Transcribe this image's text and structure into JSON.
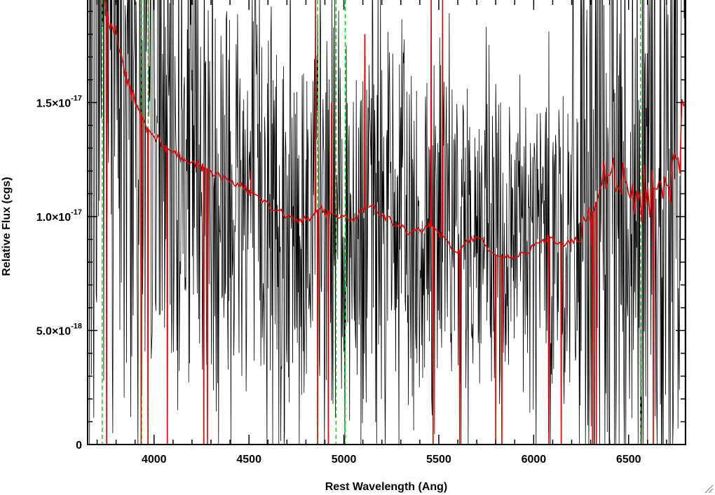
{
  "chart_data": {
    "type": "line",
    "title": "",
    "xlabel": "Rest Wavelength (Ang)",
    "ylabel": "Relative Flux (cgs)",
    "xlim": [
      3650,
      6800
    ],
    "ylim": [
      0,
      1.95e-17
    ],
    "x_ticks": [
      {
        "value": 4000,
        "label": "4000"
      },
      {
        "value": 4500,
        "label": "4500"
      },
      {
        "value": 5000,
        "label": "5000"
      },
      {
        "value": 5500,
        "label": "5500"
      },
      {
        "value": 6000,
        "label": "6000"
      },
      {
        "value": 6500,
        "label": "6500"
      }
    ],
    "y_ticks": [
      {
        "value": 0,
        "mantissa": "0",
        "exponent": ""
      },
      {
        "value": 5e-18,
        "mantissa": "5.0×10",
        "exponent": "-18"
      },
      {
        "value": 1e-17,
        "mantissa": "1.0×10",
        "exponent": "-17"
      },
      {
        "value": 1.5e-17,
        "mantissa": "1.5×10",
        "exponent": "-17"
      }
    ],
    "x_minor_step": 100,
    "y_minor_step": 1e-18,
    "grid": false,
    "series": [
      {
        "color": "#000000",
        "style": "noisy observed spectrum",
        "noise_seed": 7,
        "x_step": 2.5
      },
      {
        "color": "#e00000",
        "style": "model/template spectrum",
        "x": [
          3740,
          3760,
          3780,
          3800,
          3820,
          3840,
          3870,
          3900,
          3930,
          3960,
          4000,
          4050,
          4100,
          4150,
          4200,
          4250,
          4300,
          4350,
          4400,
          4450,
          4500,
          4550,
          4600,
          4650,
          4700,
          4750,
          4800,
          4850,
          4880,
          4900,
          4950,
          5000,
          5050,
          5100,
          5150,
          5200,
          5250,
          5300,
          5350,
          5400,
          5450,
          5500,
          5550,
          5600,
          5650,
          5700,
          5750,
          5800,
          5850,
          5900,
          5950,
          6000,
          6050,
          6100,
          6150,
          6200,
          6250,
          6300,
          6350,
          6400,
          6450,
          6500,
          6550,
          6600,
          6650,
          6700,
          6750,
          6800
        ],
        "y": [
          1.95e-17,
          1.85e-17,
          1.83e-17,
          1.8e-17,
          1.73e-17,
          1.65e-17,
          1.56e-17,
          1.5e-17,
          1.45e-17,
          1.39e-17,
          1.35e-17,
          1.31e-17,
          1.28e-17,
          1.26e-17,
          1.24e-17,
          1.22e-17,
          1.2e-17,
          1.17e-17,
          1.15e-17,
          1.13e-17,
          1.11e-17,
          1.09e-17,
          1.06e-17,
          1.03e-17,
          1e-17,
          9.9e-18,
          9.85e-18,
          1.02e-17,
          1.04e-17,
          1.02e-17,
          1.01e-17,
          1e-17,
          9.8e-18,
          1.03e-17,
          1.05e-17,
          1e-17,
          9.8e-18,
          9.5e-18,
          9.3e-18,
          9.4e-18,
          9.7e-18,
          9.3e-18,
          8.9e-18,
          8.4e-18,
          9e-18,
          9.1e-18,
          8.7e-18,
          8.3e-18,
          8.2e-18,
          8.2e-18,
          8.4e-18,
          8.7e-18,
          9e-18,
          9.1e-18,
          8.8e-18,
          9e-18,
          8.9e-18,
          9.8e-18,
          1.12e-17,
          1.18e-17,
          1.12e-17,
          1.1e-17,
          1.07e-17,
          1.13e-17,
          1.12e-17,
          1.14e-17,
          1.25e-17,
          1.5e-17
        ],
        "spikes": [
          {
            "x": 3750,
            "y": 0
          },
          {
            "x": 3932,
            "y": 0
          },
          {
            "x": 3968,
            "y": 0
          },
          {
            "x": 4070,
            "y": 0
          },
          {
            "x": 4262,
            "y": 0
          },
          {
            "x": 4281,
            "y": 0
          },
          {
            "x": 4510,
            "y": 1.2e-17
          },
          {
            "x": 4850,
            "y": 1.95e-17
          },
          {
            "x": 4862,
            "y": 0
          },
          {
            "x": 4918,
            "y": 0
          },
          {
            "x": 4935,
            "y": 1.5e-17
          },
          {
            "x": 5110,
            "y": 1.8e-17
          },
          {
            "x": 5460,
            "y": 1.95e-17
          },
          {
            "x": 5470,
            "y": 0
          },
          {
            "x": 5520,
            "y": 1.95e-17
          },
          {
            "x": 5610,
            "y": 0
          },
          {
            "x": 5800,
            "y": 0
          },
          {
            "x": 5832,
            "y": 0
          },
          {
            "x": 6080,
            "y": 0
          },
          {
            "x": 6145,
            "y": 0
          },
          {
            "x": 6310,
            "y": 0
          },
          {
            "x": 6330,
            "y": 0
          },
          {
            "x": 6630,
            "y": 0
          }
        ]
      }
    ],
    "reference_lines": {
      "color": "#00dd00",
      "style": "dashed",
      "x": [
        3727,
        3934,
        3969,
        4861,
        4959,
        5007,
        6563
      ]
    }
  }
}
